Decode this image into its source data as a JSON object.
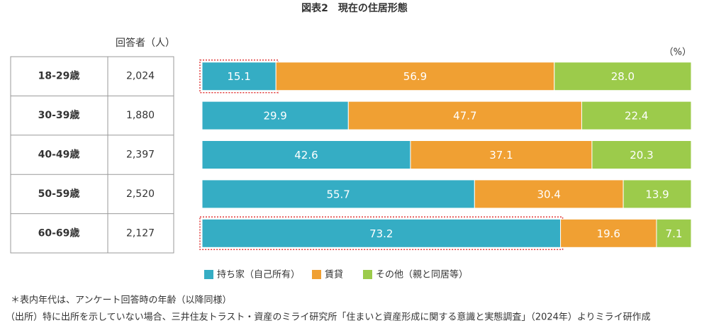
{
  "chart_data": {
    "type": "stacked_bar_100",
    "title": "図表2　現在の住居形態",
    "unit_label": "（%）",
    "table_header": "回答者（人）",
    "categories": [
      "18-29歳",
      "30-39歳",
      "40-49歳",
      "50-59歳",
      "60-69歳"
    ],
    "respondents": [
      {
        "value": 2024,
        "label": "2,024"
      },
      {
        "value": 1880,
        "label": "1,880"
      },
      {
        "value": 2397,
        "label": "2,397"
      },
      {
        "value": 2520,
        "label": "2,520"
      },
      {
        "value": 2127,
        "label": "2,127"
      }
    ],
    "series": [
      {
        "name": "持ち家（自己所有）",
        "color": "#35adc4",
        "values": [
          15.1,
          29.9,
          42.6,
          55.7,
          73.2
        ]
      },
      {
        "name": "賃貸",
        "color": "#f0a033",
        "values": [
          56.9,
          47.7,
          37.1,
          30.4,
          19.6
        ]
      },
      {
        "name": "その他（親と同居等）",
        "color": "#9ccb4b",
        "values": [
          28.0,
          22.4,
          20.3,
          13.9,
          7.1
        ]
      }
    ],
    "value_labels": [
      [
        "15.1",
        "29.9",
        "42.6",
        "55.7",
        "73.2"
      ],
      [
        "56.9",
        "47.7",
        "37.1",
        "30.4",
        "19.6"
      ],
      [
        "28.0",
        "22.4",
        "20.3",
        "13.9",
        "7.1"
      ]
    ],
    "highlights": [
      {
        "series": 0,
        "index": 0
      },
      {
        "series": 0,
        "index": 4
      }
    ],
    "highlight_color": "#e03a3a",
    "notes": [
      "＊表内年代は、アンケート回答時の年齢（以降同様）",
      "（出所）特に出所を示していない場合、三井住友トラスト・資産のミライ研究所「住まいと資産形成に関する意識と実態調査」（2024年）よりミライ研作成"
    ]
  }
}
